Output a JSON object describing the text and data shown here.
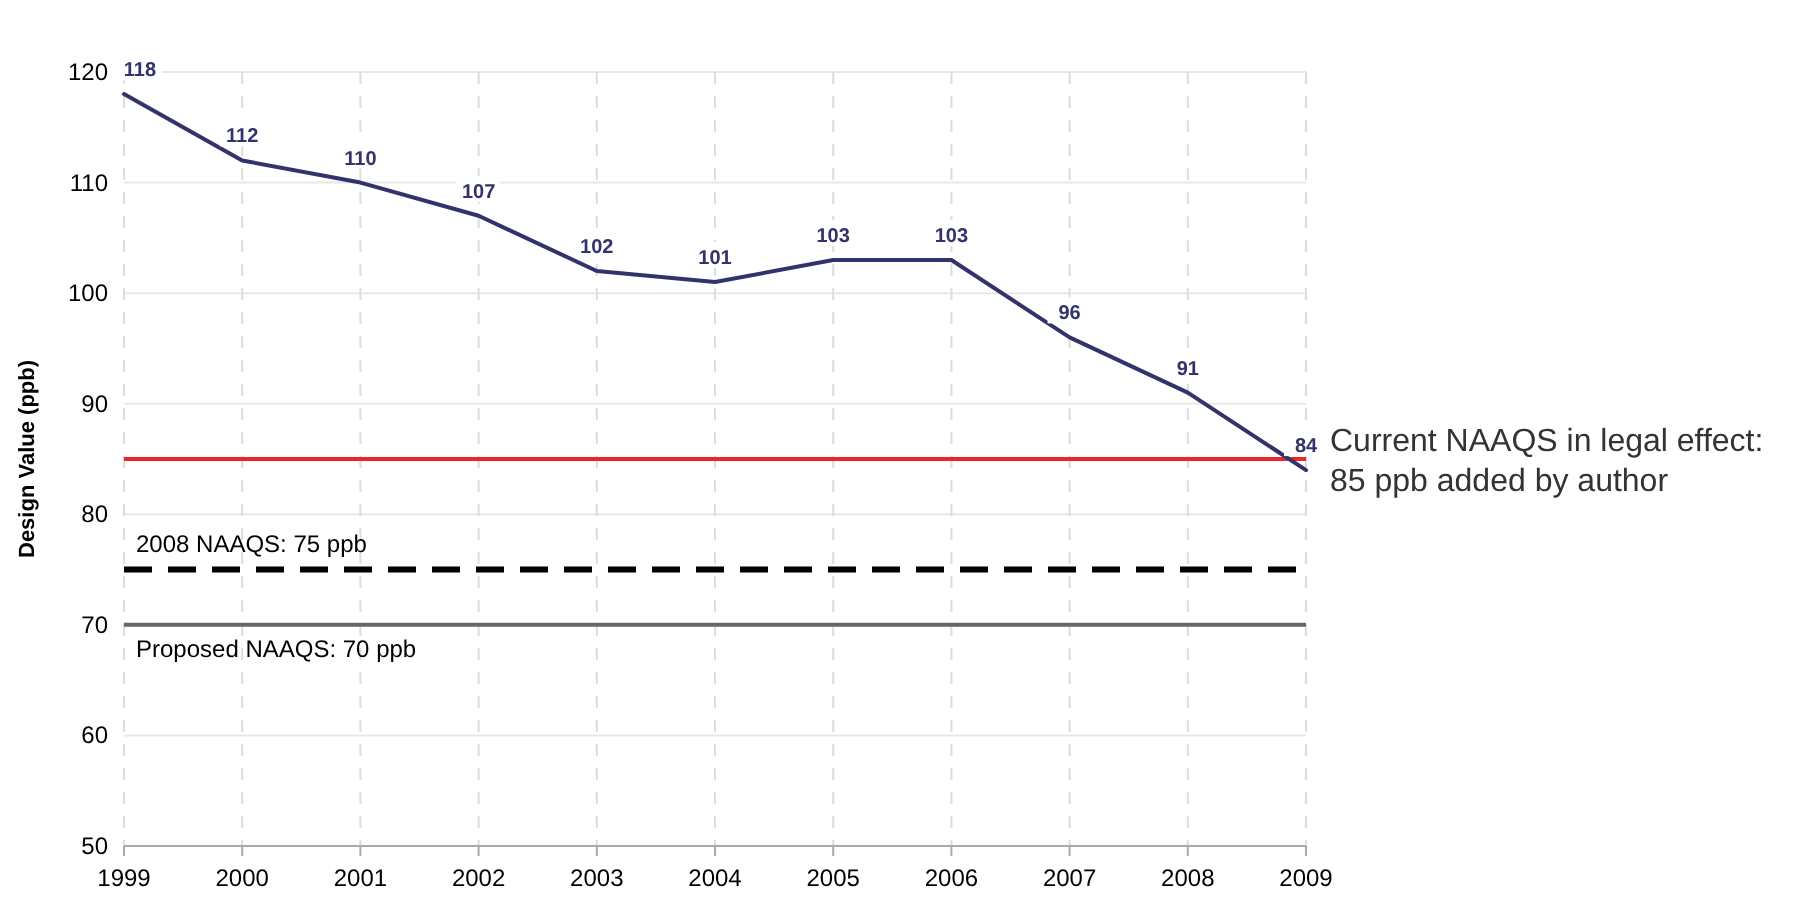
{
  "chart_data": {
    "type": "line",
    "ylabel": "Design Value (ppb)",
    "x": [
      1999,
      2000,
      2001,
      2002,
      2003,
      2004,
      2005,
      2006,
      2007,
      2008,
      2009
    ],
    "series": [
      {
        "color": "#33336b",
        "values": [
          118,
          112,
          110,
          107,
          102,
          101,
          103,
          103,
          96,
          91,
          84
        ]
      }
    ],
    "xlim": [
      1999,
      2009
    ],
    "xticks": [
      1999,
      2000,
      2001,
      2002,
      2003,
      2004,
      2005,
      2006,
      2007,
      2008,
      2009
    ],
    "ylim": [
      50,
      120
    ],
    "yticks": [
      50,
      60,
      70,
      80,
      90,
      100,
      110,
      120
    ],
    "grid": true,
    "data_labels": true,
    "marker": "none",
    "line_style": "solid",
    "ref_lines": [
      {
        "axis": "y",
        "value": 85,
        "label": "Current NAAQS in legal effect: 85 ppb added by author",
        "color": "#e8262b",
        "line_style": "solid"
      },
      {
        "axis": "y",
        "value": 75,
        "label": "2008 NAAQS: 75 ppb",
        "color": "#000000",
        "line_style": "dashed"
      },
      {
        "axis": "y",
        "value": 70,
        "label": "Proposed NAAQS: 70 ppb",
        "color": "#666666",
        "line_style": "solid"
      }
    ]
  }
}
